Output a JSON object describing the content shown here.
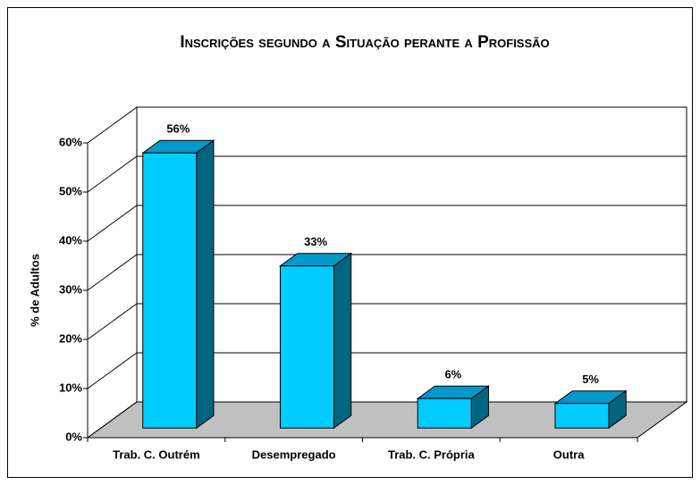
{
  "chart_data": {
    "type": "bar3d",
    "title": "Inscrições segundo a Situação perante a Profissão",
    "y_label": "% de Adultos",
    "categories": [
      "Trab. C. Outrém",
      "Desempregado",
      "Trab. C. Própria",
      "Outra"
    ],
    "values": [
      56,
      33,
      6,
      5
    ],
    "value_labels": [
      "56%",
      "33%",
      "6%",
      "5%"
    ],
    "color": "#00ccff",
    "ylim": [
      0,
      60
    ],
    "yticks": [
      {
        "value": 0,
        "label": "0%"
      },
      {
        "value": 10,
        "label": "10%"
      },
      {
        "value": 20,
        "label": "20%"
      },
      {
        "value": 30,
        "label": "30%"
      },
      {
        "value": 40,
        "label": "40%"
      },
      {
        "value": 50,
        "label": "50%"
      },
      {
        "value": 60,
        "label": "60%"
      }
    ],
    "grid": true
  }
}
